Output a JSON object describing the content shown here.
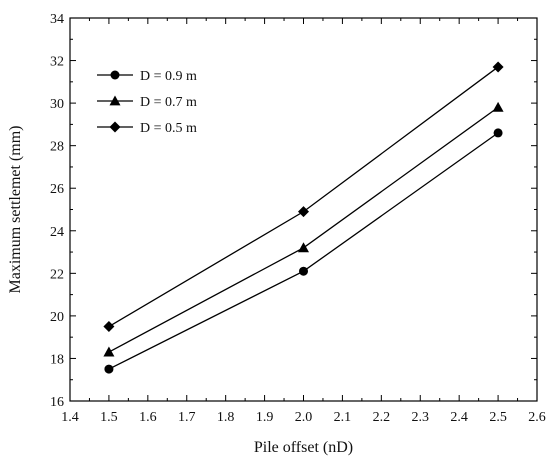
{
  "chart_data": {
    "type": "line",
    "title": "",
    "xlabel": "Pile offset (nD)",
    "ylabel": "Maximum settlemet (mm)",
    "xlim": [
      1.4,
      2.6
    ],
    "ylim": [
      16,
      34
    ],
    "xticks": [
      "1.4",
      "1.5",
      "1.6",
      "1.7",
      "1.8",
      "1.9",
      "2.0",
      "2.1",
      "2.2",
      "2.3",
      "2.4",
      "2.5",
      "2.6"
    ],
    "yticks": [
      "16",
      "18",
      "20",
      "22",
      "24",
      "26",
      "28",
      "30",
      "32",
      "34"
    ],
    "grid": false,
    "legend_position": "top-left",
    "x": [
      1.5,
      2.0,
      2.5
    ],
    "series": [
      {
        "name": "D = 0.9 m",
        "marker": "circle",
        "values": [
          17.5,
          22.1,
          28.6
        ]
      },
      {
        "name": "D = 0.7 m",
        "marker": "triangle",
        "values": [
          18.3,
          23.2,
          29.8
        ]
      },
      {
        "name": "D = 0.5 m",
        "marker": "diamond",
        "values": [
          19.5,
          24.9,
          31.7
        ]
      }
    ],
    "colors": {
      "line": "#000000",
      "marker": "#000000"
    }
  }
}
